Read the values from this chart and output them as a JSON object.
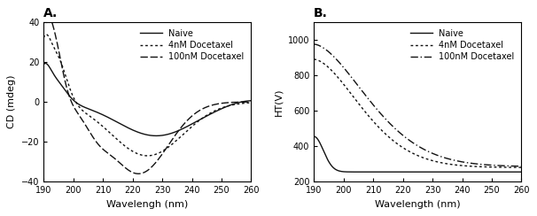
{
  "title_A": "A.",
  "title_B": "B.",
  "xlabel_A": "Wavelengh (nm)",
  "xlabel_B": "Wavelength (nm)",
  "ylabel_A": "CD (mdeg)",
  "ylabel_B": "HT(V)",
  "xlim": [
    190,
    260
  ],
  "xticks": [
    190,
    200,
    210,
    220,
    230,
    240,
    250,
    260
  ],
  "ylim_A": [
    -40,
    40
  ],
  "yticks_A": [
    -40,
    -20,
    0,
    20,
    40
  ],
  "ylim_B": [
    200,
    1100
  ],
  "yticks_B": [
    200,
    400,
    600,
    800,
    1000
  ],
  "legend_labels": [
    "Naive",
    "4nM Docetaxel",
    "100nM Docetaxel"
  ],
  "line_color": "#111111",
  "background_color": "#ffffff",
  "font_size": 7,
  "label_font_size": 8,
  "title_fontsize": 10
}
